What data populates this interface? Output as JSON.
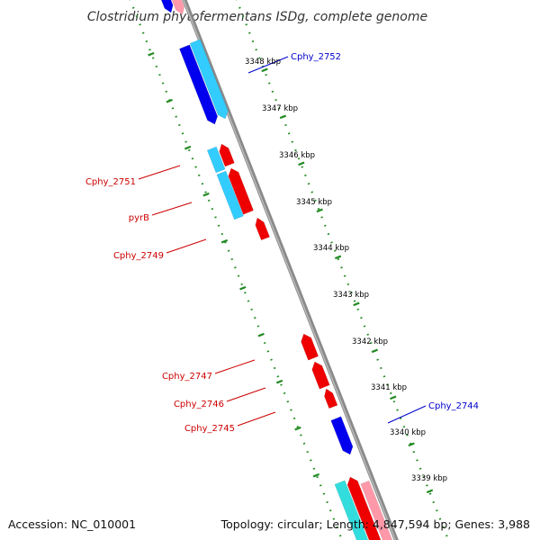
{
  "title": "Clostridium phytofermentans ISDg, complete genome",
  "footer": {
    "accession": "Accession: NC_010001",
    "topology": "Topology: circular; Length: 4,847,594 bp; Genes: 3,988"
  },
  "colors": {
    "forward_gene": "#0000ee",
    "forward_gene_light": "#33ccff",
    "reverse_gene": "#ee0000",
    "reverse_gene_light": "#ff99aa",
    "backbone": "#888888",
    "ruler_dots": "#228B22",
    "forward_label": "#0000cc",
    "reverse_label": "#cc0000"
  },
  "scale_labels": [
    "3348 kbp",
    "3347 kbp",
    "3346 kbp",
    "3345 kbp",
    "3344 kbp",
    "3343 kbp",
    "3342 kbp",
    "3341 kbp",
    "3340 kbp",
    "3339 kbp"
  ],
  "gene_labels": [
    {
      "text": "Cphy_2752",
      "strand": "forward"
    },
    {
      "text": "Cphy_2751",
      "strand": "reverse"
    },
    {
      "text": "pyrB",
      "strand": "reverse"
    },
    {
      "text": "Cphy_2749",
      "strand": "reverse"
    },
    {
      "text": "Cphy_2747",
      "strand": "reverse"
    },
    {
      "text": "Cphy_2746",
      "strand": "reverse"
    },
    {
      "text": "Cphy_2745",
      "strand": "reverse"
    },
    {
      "text": "Cphy_2744",
      "strand": "forward"
    }
  ]
}
